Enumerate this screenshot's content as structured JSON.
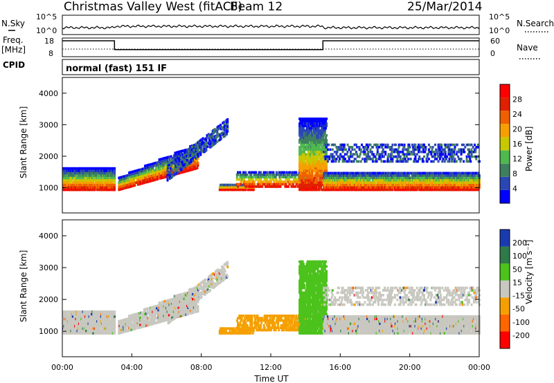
{
  "header": {
    "station": "Christmas Valley West (fitACF)",
    "beam": "Beam 12",
    "date": "25/Mar/2014"
  },
  "left_labels": {
    "nsky": "N.Sky",
    "freq": "Freq.",
    "freq_unit": "[MHz]",
    "cpid": "CPID"
  },
  "right_labels": {
    "nsearch": "N.Search",
    "nave": "Nave"
  },
  "cpid_text": "normal (fast) 151 IF",
  "colors": {
    "power_scale": [
      "#0000ff",
      "#2b47b5",
      "#3f7f5f",
      "#4fb84f",
      "#c8c800",
      "#f5a000",
      "#f06000",
      "#e02000",
      "#ff0000"
    ],
    "velocity_scale": [
      "#1a3bb0",
      "#2f7a4a",
      "#4cc21c",
      "#c8c8c0",
      "#f5a000",
      "#ff6600",
      "#ff0000"
    ]
  },
  "chart_data": [
    {
      "type": "line",
      "name": "noise-sky-search",
      "ylabel_left": "N.Sky",
      "ylabel_right": "N.Search",
      "yticks_left": [
        "10^5",
        "10^0"
      ],
      "yticks_right": [
        "10^5",
        "10^0"
      ],
      "xlim": [
        0,
        24
      ]
    },
    {
      "type": "line",
      "name": "frequency-nave",
      "ylabel_left": "Freq. [MHz]",
      "ylabel_right": "Nave",
      "yticks_left": [
        "18",
        "8"
      ],
      "yticks_right": [
        "60",
        "0"
      ],
      "series": [
        {
          "name": "Freq",
          "x": [
            0,
            3.0,
            3.0,
            15.0,
            15.0,
            24
          ],
          "y": [
            16.5,
            16.5,
            11.8,
            11.8,
            16.5,
            16.5
          ]
        }
      ],
      "xlim": [
        0,
        24
      ]
    },
    {
      "type": "heatmap",
      "name": "power",
      "ylabel": "Slant Range [km]",
      "yticks": [
        1000,
        2000,
        3000,
        4000
      ],
      "ylim": [
        200,
        4500
      ],
      "xlim": [
        0,
        24
      ],
      "colorbar_label": "Power [dB]",
      "colorbar_ticks": [
        4,
        8,
        12,
        16,
        20,
        24,
        28
      ]
    },
    {
      "type": "heatmap",
      "name": "velocity",
      "ylabel": "Slant Range [km]",
      "yticks": [
        1000,
        2000,
        3000,
        4000
      ],
      "ylim": [
        200,
        4500
      ],
      "xlim": [
        0,
        24
      ],
      "xlabel": "Time UT",
      "xticks": [
        "00:00",
        "04:00",
        "08:00",
        "12:00",
        "16:00",
        "20:00",
        "00:00"
      ],
      "colorbar_label": "Velocity [m s⁻¹]",
      "colorbar_ticks": [
        200,
        100,
        50,
        15,
        -15,
        -50,
        -100,
        -200
      ]
    }
  ]
}
